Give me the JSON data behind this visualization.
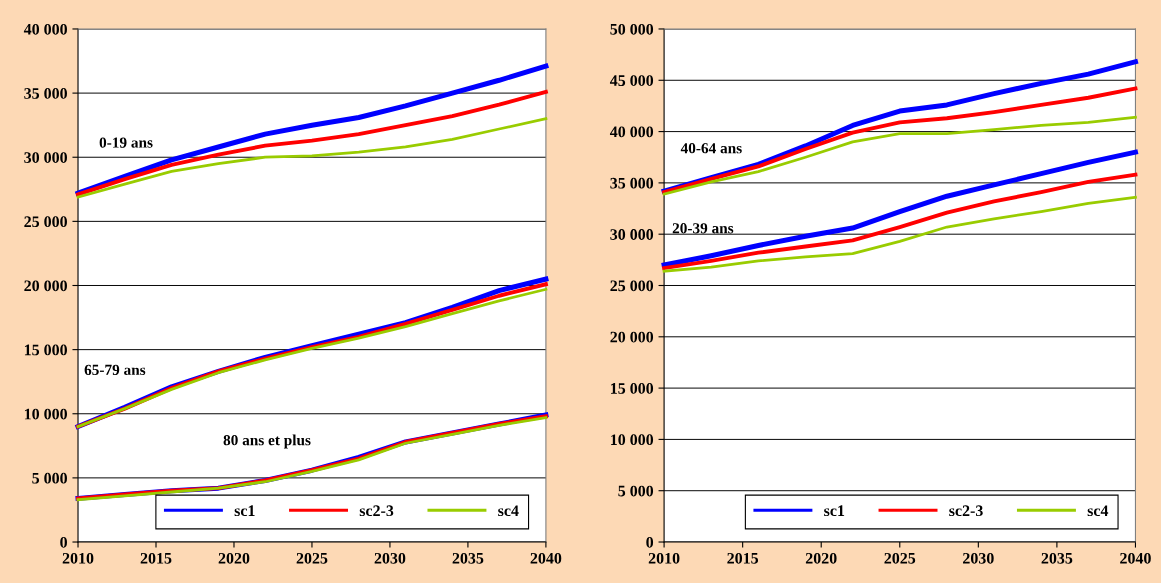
{
  "chart_data": [
    {
      "type": "line",
      "x": [
        2010,
        2013,
        2016,
        2019,
        2022,
        2025,
        2028,
        2031,
        2034,
        2037,
        2040
      ],
      "series": [
        {
          "name": "sc1",
          "color": "#0000ff",
          "values": [
            27200,
            28500,
            29800,
            30800,
            31800,
            32500,
            33100,
            34000,
            35000,
            36000,
            37100
          ]
        },
        {
          "name": "sc2-3",
          "color": "#ff0000",
          "values": [
            27100,
            28300,
            29400,
            30200,
            30900,
            31300,
            31800,
            32500,
            33200,
            34100,
            35100
          ]
        },
        {
          "name": "sc4",
          "color": "#99cc00",
          "values": [
            26900,
            27900,
            28900,
            29500,
            30000,
            30100,
            30400,
            30800,
            31400,
            32200,
            33000
          ]
        },
        {
          "color": "#0000ff",
          "values": [
            9000,
            10500,
            12100,
            13300,
            14400,
            15300,
            16200,
            17100,
            18300,
            19600,
            20500
          ]
        },
        {
          "color": "#ff0000",
          "values": [
            9000,
            10400,
            12000,
            13300,
            14300,
            15200,
            16000,
            17000,
            18100,
            19200,
            20100
          ]
        },
        {
          "color": "#99cc00",
          "values": [
            9000,
            10400,
            11900,
            13200,
            14200,
            15100,
            15900,
            16800,
            17800,
            18800,
            19700
          ]
        },
        {
          "color": "#0000ff",
          "values": [
            3400,
            3700,
            4000,
            4200,
            4800,
            5600,
            6600,
            7800,
            8500,
            9200,
            9900
          ]
        },
        {
          "color": "#ff0000",
          "values": [
            3400,
            3700,
            4000,
            4200,
            4800,
            5600,
            6500,
            7800,
            8500,
            9200,
            9800
          ]
        },
        {
          "color": "#99cc00",
          "values": [
            3300,
            3600,
            3900,
            4200,
            4700,
            5500,
            6400,
            7700,
            8400,
            9100,
            9700
          ]
        }
      ],
      "annotations": [
        "0-19 ans",
        "65-79 ans",
        "80 ans et plus"
      ],
      "xlim": [
        2010,
        2040
      ],
      "xticks": [
        2010,
        2015,
        2020,
        2025,
        2030,
        2035,
        2040
      ],
      "ylim": [
        0,
        40000
      ],
      "yticks": [
        0,
        {
          "value": 5000,
          "label": "5 000"
        },
        {
          "value": 10000,
          "label": "10 000"
        },
        {
          "value": 15000,
          "label": "15 000"
        },
        {
          "value": 20000,
          "label": "20 000"
        },
        {
          "value": 25000,
          "label": "25 000"
        },
        {
          "value": 30000,
          "label": "30 000"
        },
        {
          "value": 35000,
          "label": "35 000"
        },
        {
          "value": 40000,
          "label": "40 000"
        }
      ],
      "grid": "y",
      "legend": "bottom right",
      "marker": "none",
      "line_style": "solid"
    },
    {
      "type": "line",
      "x": [
        2010,
        2013,
        2016,
        2019,
        2022,
        2025,
        2028,
        2031,
        2034,
        2037,
        2040
      ],
      "series": [
        {
          "name": "sc1",
          "color": "#0000ff",
          "values": [
            34200,
            35500,
            36800,
            38600,
            40600,
            42000,
            42600,
            43700,
            44700,
            45600,
            46800
          ]
        },
        {
          "name": "sc2-3",
          "color": "#ff0000",
          "values": [
            34100,
            35400,
            36600,
            38300,
            39900,
            40900,
            41300,
            41900,
            42600,
            43300,
            44200
          ]
        },
        {
          "name": "sc4",
          "color": "#99cc00",
          "values": [
            33900,
            35100,
            36100,
            37500,
            39000,
            39800,
            39800,
            40200,
            40600,
            40900,
            41400
          ]
        },
        {
          "color": "#0000ff",
          "values": [
            27000,
            27900,
            28900,
            29800,
            30600,
            32200,
            33700,
            34800,
            35900,
            37000,
            38000
          ]
        },
        {
          "color": "#ff0000",
          "values": [
            26700,
            27400,
            28200,
            28800,
            29400,
            30700,
            32100,
            33200,
            34100,
            35100,
            35800
          ]
        },
        {
          "color": "#99cc00",
          "values": [
            26400,
            26800,
            27400,
            27800,
            28100,
            29300,
            30700,
            31500,
            32200,
            33000,
            33600
          ]
        }
      ],
      "annotations": [
        "40-64 ans",
        "20-39 ans"
      ],
      "xlim": [
        2010,
        2040
      ],
      "xticks": [
        2010,
        2015,
        2020,
        2025,
        2030,
        2035,
        2040
      ],
      "ylim": [
        0,
        50000
      ],
      "yticks": [
        0,
        {
          "value": 5000,
          "label": "5 000"
        },
        {
          "value": 10000,
          "label": "10 000"
        },
        {
          "value": 15000,
          "label": "15 000"
        },
        {
          "value": 20000,
          "label": "20 000"
        },
        {
          "value": 25000,
          "label": "25 000"
        },
        {
          "value": 30000,
          "label": "30 000"
        },
        {
          "value": 35000,
          "label": "35 000"
        },
        {
          "value": 40000,
          "label": "40 000"
        },
        {
          "value": 45000,
          "label": "45 000"
        },
        {
          "value": 50000,
          "label": "50 000"
        }
      ],
      "grid": "y",
      "legend": "bottom right",
      "marker": "none",
      "line_style": "solid"
    }
  ]
}
